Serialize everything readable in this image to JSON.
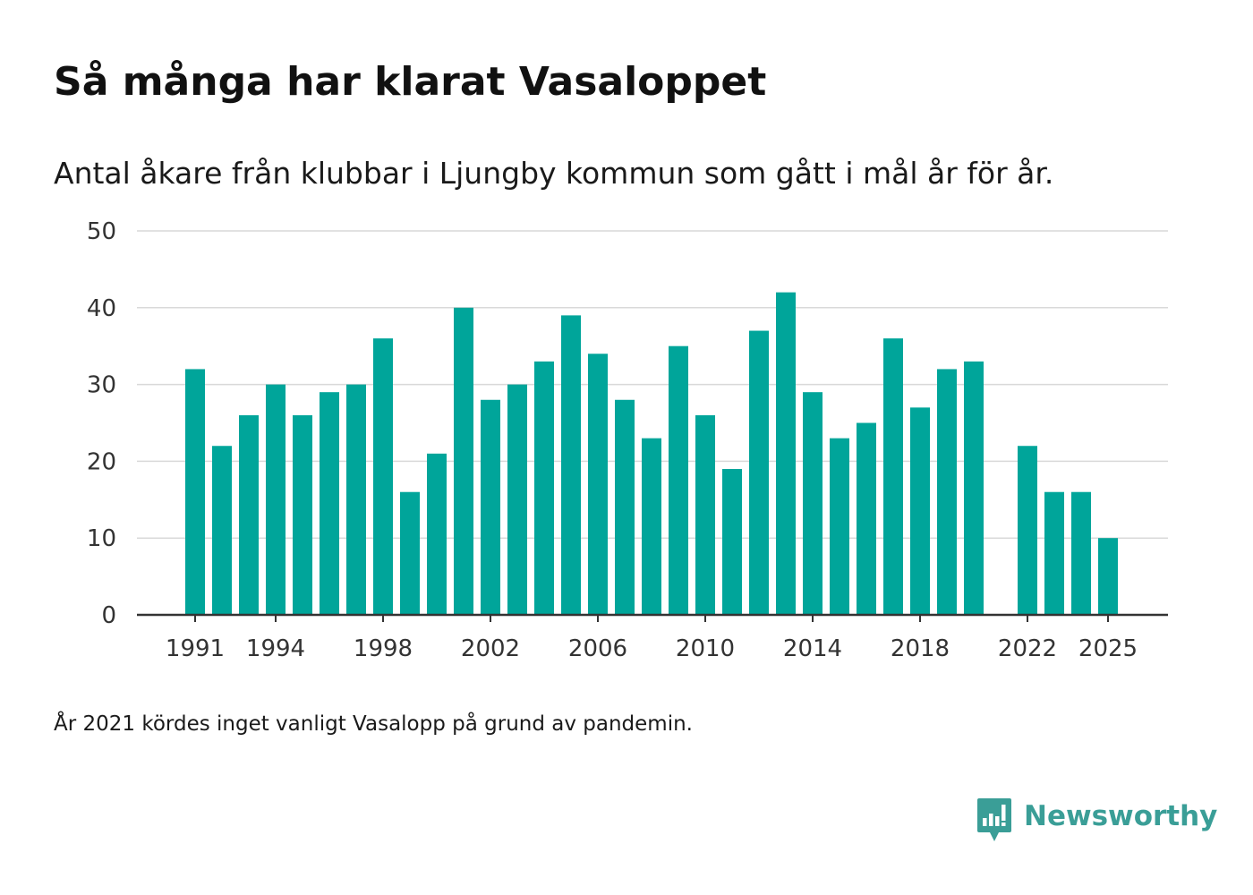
{
  "header": {
    "title": "Så många har klarat Vasaloppet",
    "subtitle": "Antal åkare från klubbar i Ljungby kommun som gått i mål år för år."
  },
  "footer": {
    "note": "År 2021 kördes inget vanligt Vasalopp på grund av pandemin.",
    "brand_name": "Newsworthy",
    "brand_icon": "newsworthy-logo-icon"
  },
  "colors": {
    "bar": "#00a59a",
    "grid": "#d9d9d9",
    "axis": "#333333",
    "brand": "#3a9e97"
  },
  "chart_data": {
    "type": "bar",
    "title": "Så många har klarat Vasaloppet",
    "subtitle": "Antal åkare från klubbar i Ljungby kommun som gått i mål år för år.",
    "xlabel": "",
    "ylabel": "",
    "ylim": [
      0,
      50
    ],
    "yticks": [
      0,
      10,
      20,
      30,
      40,
      50
    ],
    "xticks": [
      1991,
      1994,
      1998,
      2002,
      2006,
      2010,
      2014,
      2018,
      2022,
      2025
    ],
    "grid": true,
    "categories": [
      1991,
      1992,
      1993,
      1994,
      1995,
      1996,
      1997,
      1998,
      1999,
      2000,
      2001,
      2002,
      2003,
      2004,
      2005,
      2006,
      2007,
      2008,
      2009,
      2010,
      2011,
      2012,
      2013,
      2014,
      2015,
      2016,
      2017,
      2018,
      2019,
      2020,
      2021,
      2022,
      2023,
      2024,
      2025
    ],
    "values": [
      32,
      22,
      26,
      30,
      26,
      29,
      30,
      36,
      16,
      21,
      40,
      28,
      30,
      33,
      39,
      34,
      28,
      23,
      35,
      26,
      19,
      37,
      42,
      29,
      23,
      25,
      36,
      27,
      32,
      33,
      null,
      22,
      16,
      16,
      10
    ]
  }
}
